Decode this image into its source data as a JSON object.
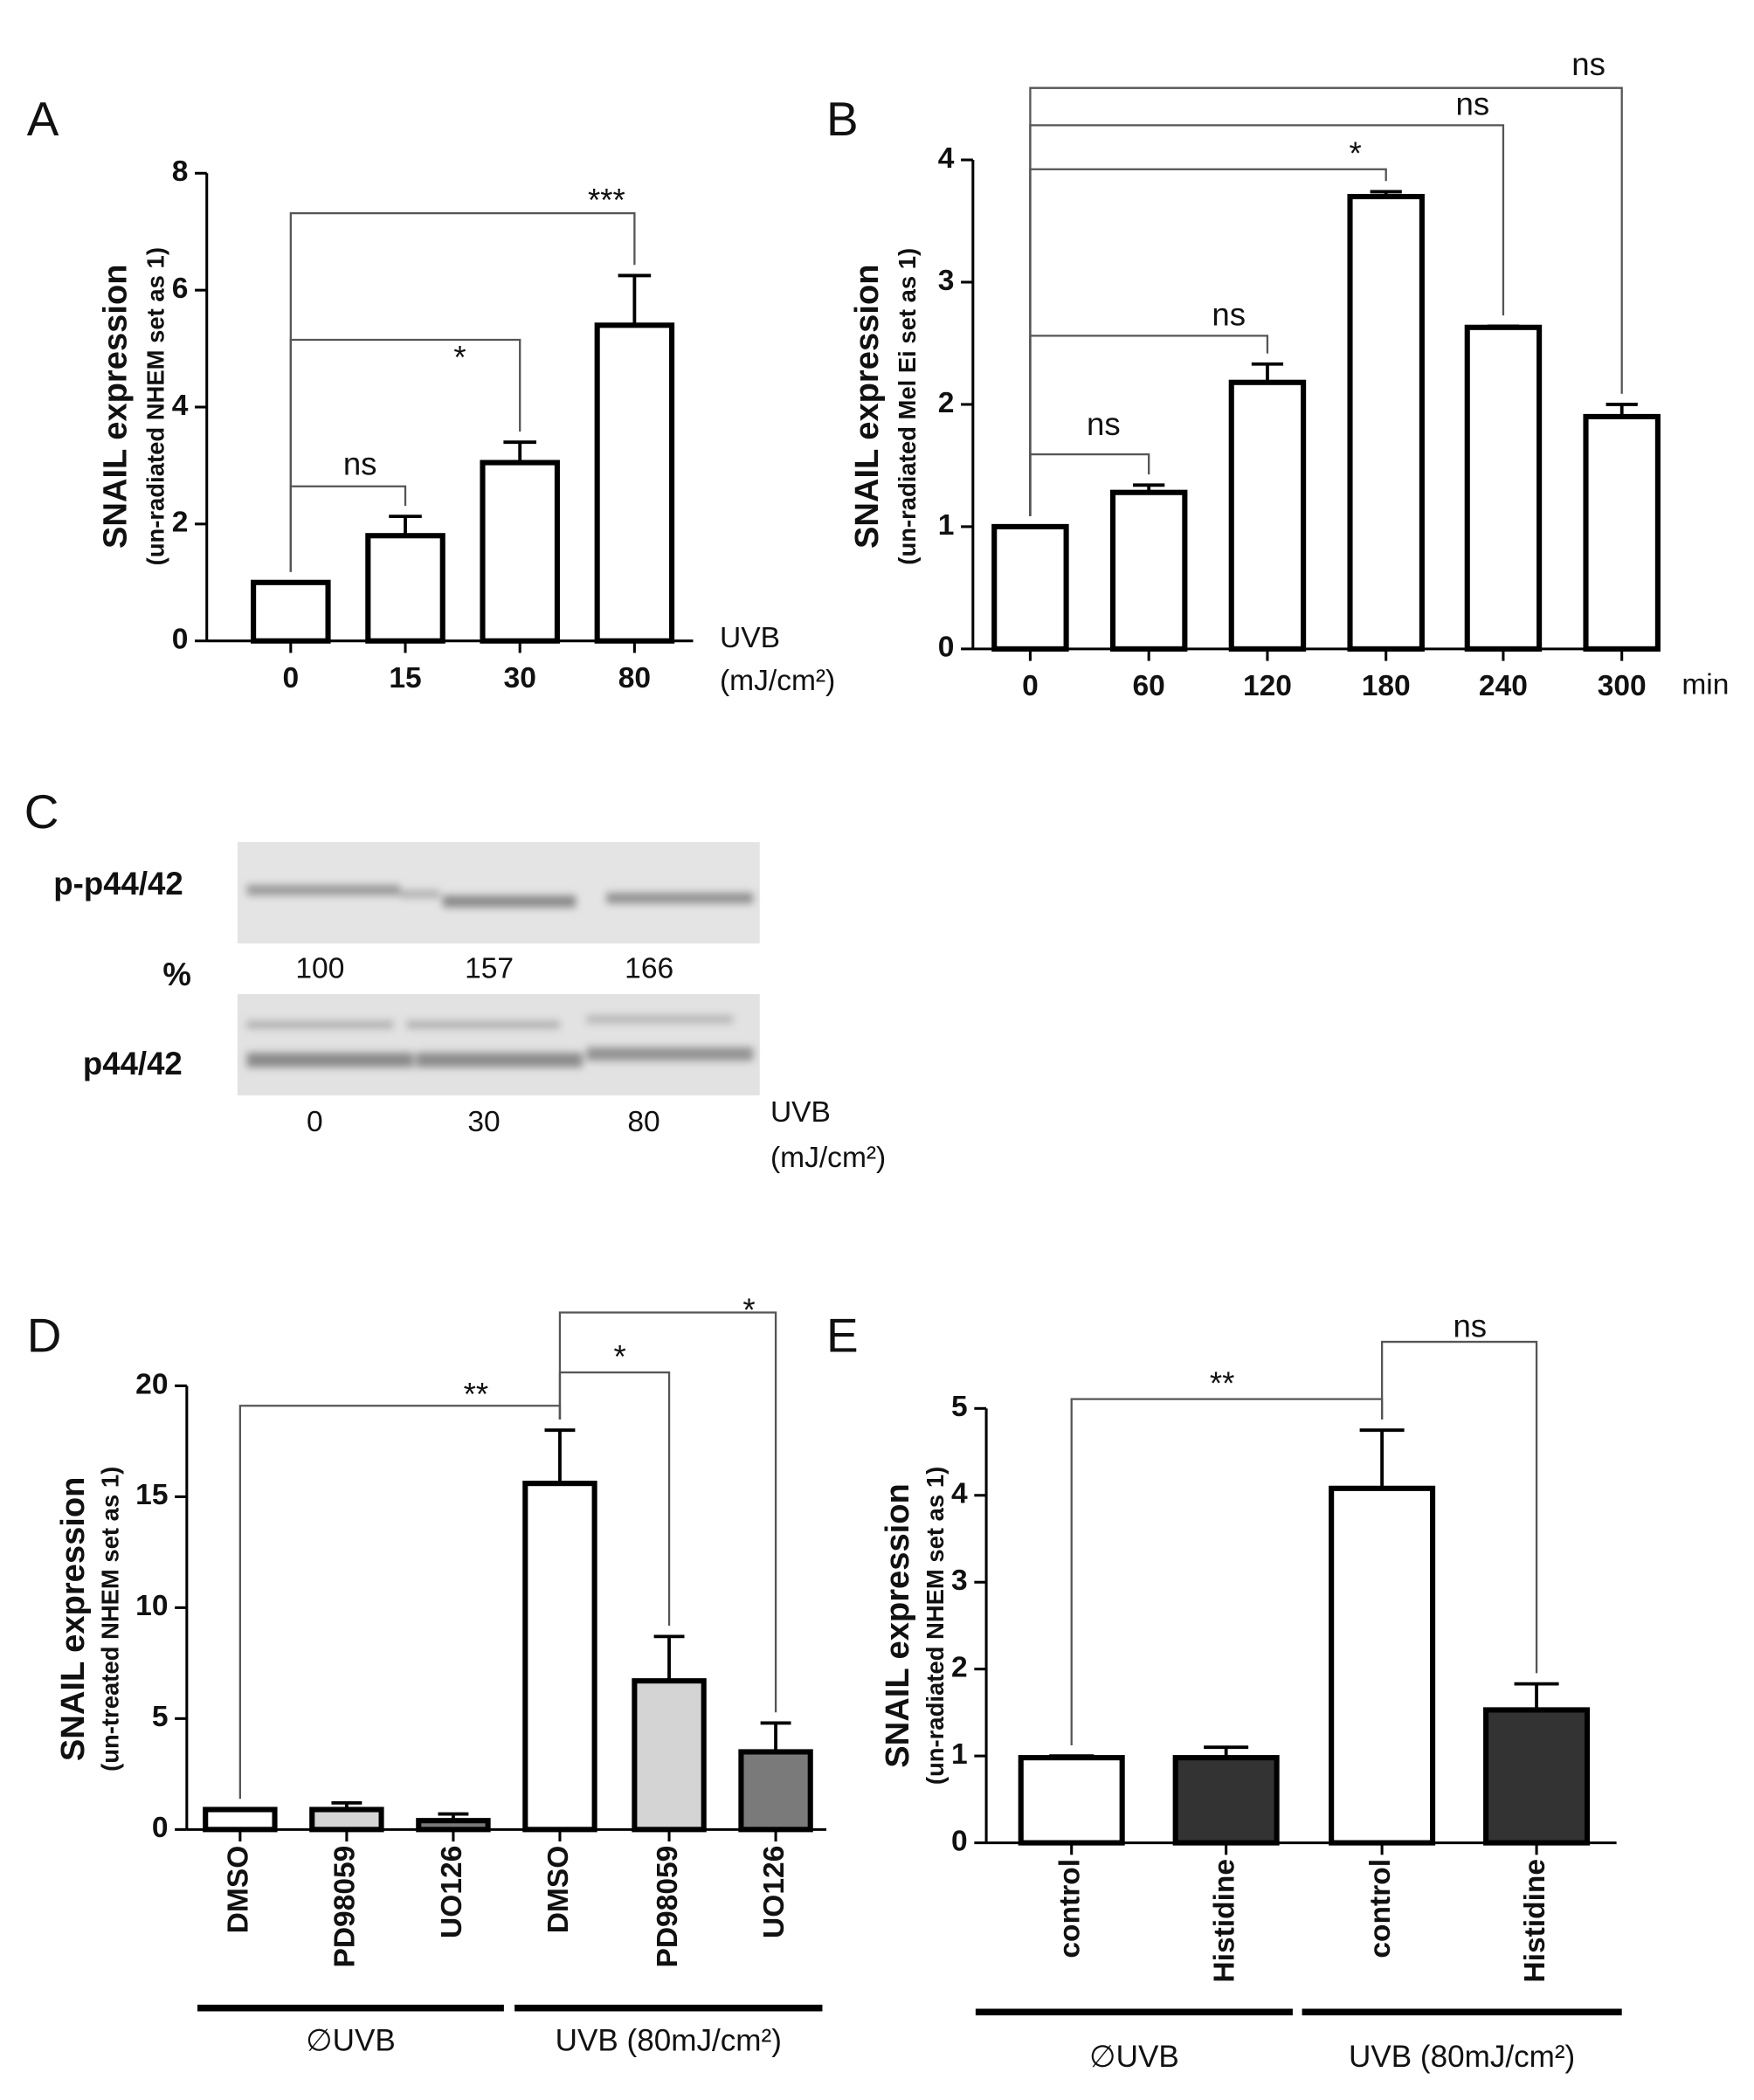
{
  "chart_data": [
    {
      "type": "bar",
      "panel": "A",
      "ylabel": "SNAIL expression",
      "ylabel_sub": "(un-radiated NHEM set as 1)",
      "categories": [
        "0",
        "15",
        "30",
        "80"
      ],
      "values": [
        1,
        1.8,
        3.05,
        5.4
      ],
      "errors": [
        0,
        0.33,
        0.35,
        0.85
      ],
      "color": "#ffffff",
      "ylim": [
        0,
        8
      ],
      "yticks": [
        0,
        2,
        4,
        6,
        8
      ],
      "xlabel": "UVB",
      "xlabel_unit": "(mJ/cm²)",
      "annotations": [
        "ns",
        "*",
        "***"
      ]
    },
    {
      "type": "bar",
      "panel": "B",
      "ylabel": "SNAIL expression",
      "ylabel_sub": "(un-radiated Mel Ei set as 1)",
      "categories": [
        "0",
        "60",
        "120",
        "180",
        "240",
        "300"
      ],
      "values": [
        1,
        1.28,
        2.18,
        3.7,
        2.63,
        1.9
      ],
      "errors": [
        0,
        0.06,
        0.15,
        0.04,
        0.01,
        0.1
      ],
      "color": "#ffffff",
      "ylim": [
        0,
        4
      ],
      "yticks": [
        0,
        1,
        2,
        3,
        4
      ],
      "xlabel": "min",
      "annotations": [
        "ns",
        "ns",
        "*",
        "ns",
        "ns"
      ]
    },
    {
      "type": "bar",
      "panel": "D",
      "ylabel": "SNAIL expression",
      "ylabel_sub": "(un-treated NHEM set as 1)",
      "categories": [
        "DMSO",
        "PD98059",
        "UO126",
        "DMSO",
        "PD98059",
        "UO126"
      ],
      "values": [
        0.9,
        0.9,
        0.4,
        15.6,
        6.7,
        3.5
      ],
      "errors": [
        0,
        0.3,
        0.3,
        2.4,
        2.0,
        1.3
      ],
      "colors": [
        "#ffffff",
        "#d4d4d4",
        "#7a7a7a",
        "#ffffff",
        "#d4d4d4",
        "#7a7a7a"
      ],
      "ylim": [
        0,
        20
      ],
      "yticks": [
        0,
        5,
        10,
        15,
        20
      ],
      "groups": [
        "∅UVB",
        "UVB (80mJ/cm²)"
      ],
      "annotations": [
        "**",
        "*",
        "*"
      ]
    },
    {
      "type": "bar",
      "panel": "E",
      "ylabel": "SNAIL expression",
      "ylabel_sub": "(un-radiated NHEM set as 1)",
      "categories": [
        "control",
        "Histidine",
        "control",
        "Histidine"
      ],
      "values": [
        0.98,
        0.98,
        4.08,
        1.53
      ],
      "errors": [
        0.02,
        0.12,
        0.67,
        0.3
      ],
      "colors": [
        "#ffffff",
        "#333333",
        "#ffffff",
        "#333333"
      ],
      "ylim": [
        0,
        5
      ],
      "yticks": [
        0,
        1,
        2,
        3,
        4,
        5
      ],
      "groups": [
        "∅UVB",
        "UVB (80mJ/cm²)"
      ],
      "annotations": [
        "**",
        "ns"
      ]
    }
  ],
  "blot": {
    "panel": "C",
    "row_labels": [
      "p-p44/42",
      "p44/42"
    ],
    "percent_label": "%",
    "percent_values": [
      100,
      157,
      166
    ],
    "lanes": [
      "0",
      "30",
      "80"
    ],
    "xlabel": "UVB",
    "xlabel_unit": "(mJ/cm²)"
  }
}
